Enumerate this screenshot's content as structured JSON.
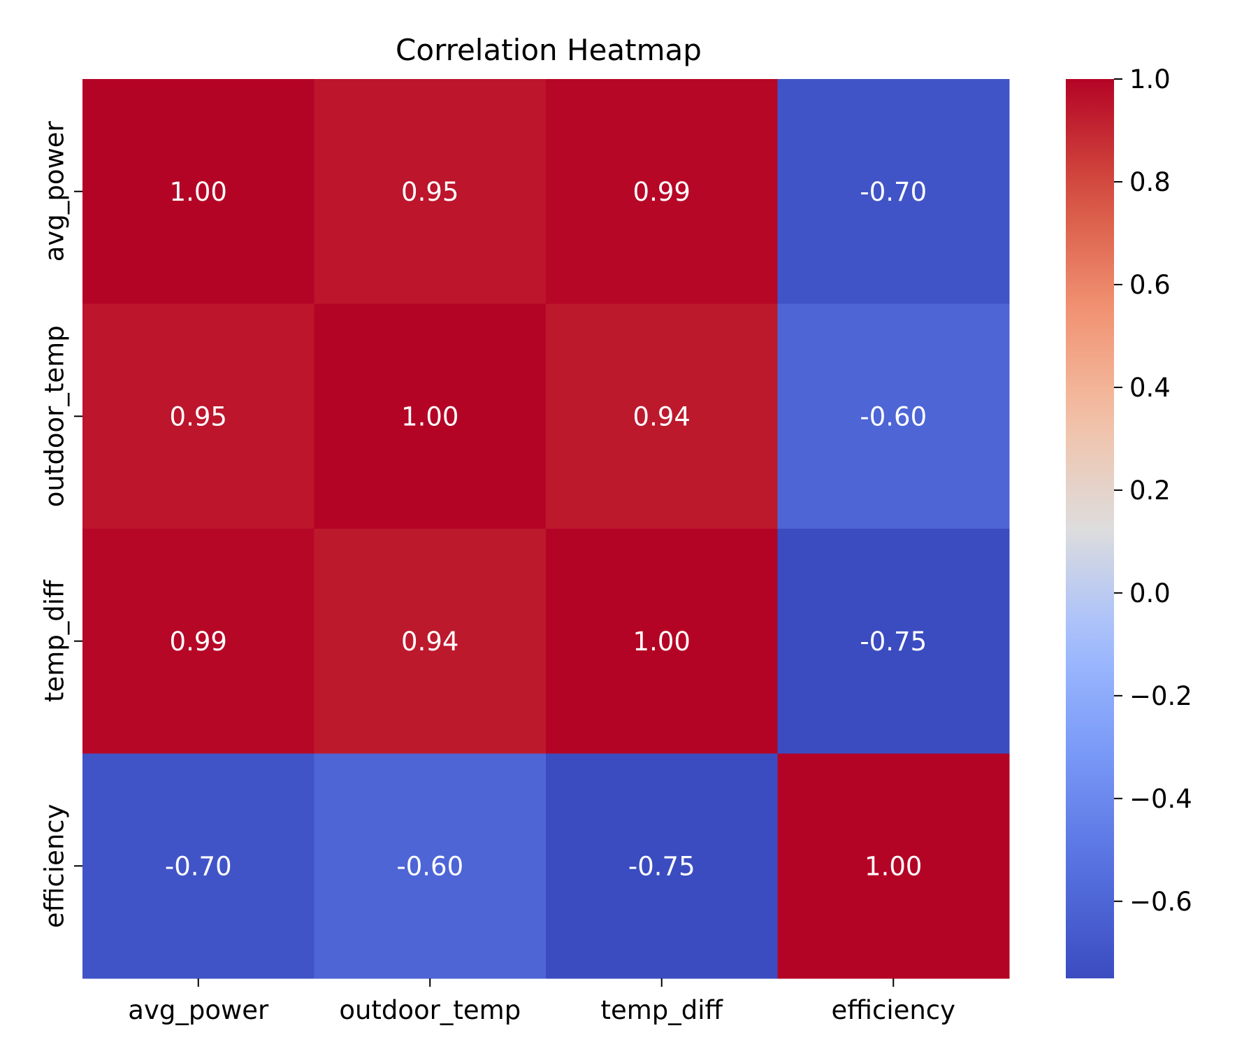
{
  "chart_data": {
    "type": "heatmap",
    "title": "Correlation Heatmap",
    "xlabel": "",
    "ylabel": "",
    "x_categories": [
      "avg_power",
      "outdoor_temp",
      "temp_diff",
      "efficiency"
    ],
    "y_categories": [
      "avg_power",
      "outdoor_temp",
      "temp_diff",
      "efficiency"
    ],
    "values": [
      [
        1.0,
        0.95,
        0.99,
        -0.7
      ],
      [
        0.95,
        1.0,
        0.94,
        -0.6
      ],
      [
        0.99,
        0.94,
        1.0,
        -0.75
      ],
      [
        -0.7,
        -0.6,
        -0.75,
        1.0
      ]
    ],
    "cell_labels": [
      [
        "1.00",
        "0.95",
        "0.99",
        "-0.70"
      ],
      [
        "0.95",
        "1.00",
        "0.94",
        "-0.60"
      ],
      [
        "0.99",
        "0.94",
        "1.00",
        "-0.75"
      ],
      [
        "-0.70",
        "-0.60",
        "-0.75",
        "1.00"
      ]
    ],
    "colormap": "coolwarm",
    "colorbar": {
      "range": [
        -0.75,
        1.0
      ],
      "ticks": [
        1.0,
        0.8,
        0.6,
        0.4,
        0.2,
        0.0,
        -0.2,
        -0.4,
        -0.6
      ],
      "tick_labels": [
        "1.0",
        "0.8",
        "0.6",
        "0.4",
        "0.2",
        "0.0",
        "−0.2",
        "−0.4",
        "−0.6"
      ]
    },
    "grid": false,
    "legend": "colorbar-right"
  }
}
